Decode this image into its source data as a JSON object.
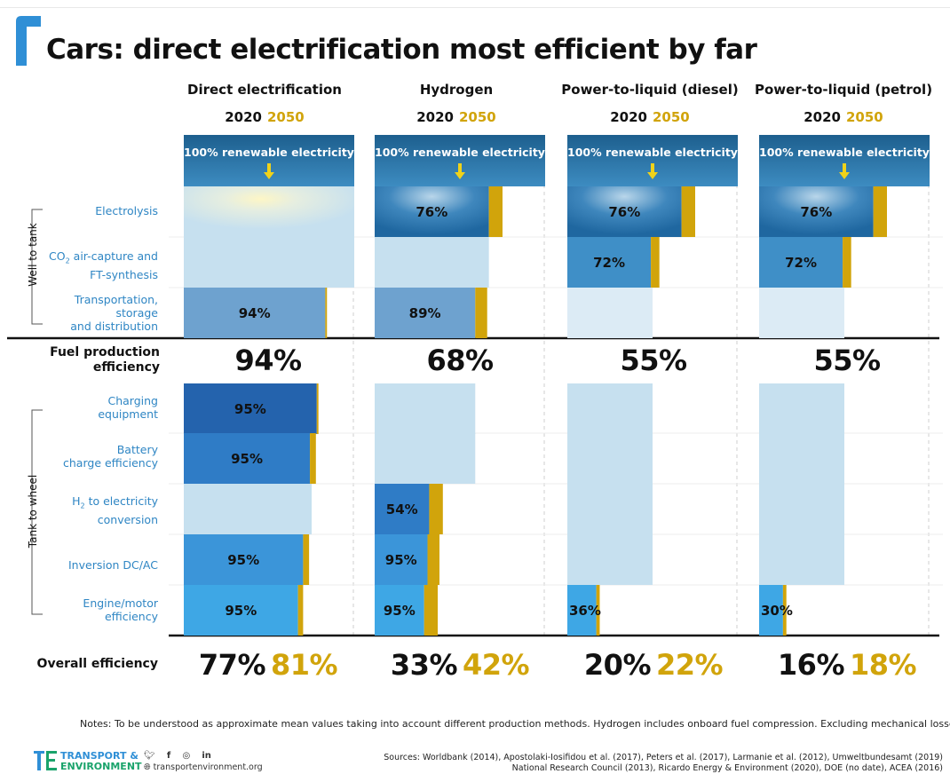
{
  "title": "Cars: direct electrification most efficient by far",
  "colors": {
    "accent_2050": "#d1a40b",
    "renewable_top": "#1d5f8e",
    "renewable_bottom": "#3d8cc1",
    "light_bar": "#c6e0ef",
    "arrow": "#f0d21a",
    "brand_blue": "#2f8fd6",
    "brand_green": "#1aa36b"
  },
  "columns": [
    {
      "title": "Direct electrification",
      "year_a": "2020",
      "year_b": "2050"
    },
    {
      "title": "Hydrogen",
      "year_a": "2020",
      "year_b": "2050"
    },
    {
      "title": "Power-to-liquid (diesel)",
      "year_a": "2020",
      "year_b": "2050"
    },
    {
      "title": "Power-to-liquid (petrol)",
      "year_a": "2020",
      "year_b": "2050"
    }
  ],
  "renewable_label": "100% renewable electricity",
  "row_labels": {
    "electrolysis": "Electrolysis",
    "co2_a": "CO",
    "co2_sub": "2",
    "co2_b": " air-capture and",
    "co2_c": "FT-synthesis",
    "transport_a": "Transportation,",
    "transport_b": "storage",
    "transport_c": "and distribution",
    "fuel_a": "Fuel production",
    "fuel_b": "efficiency",
    "charging_a": "Charging",
    "charging_b": "equipment",
    "battery_a": "Battery",
    "battery_b": "charge efficiency",
    "h2_a": "H",
    "h2_sub": "2",
    "h2_b": " to electricity",
    "h2_c": "conversion",
    "inversion": "Inversion DC/AC",
    "engine_a": "Engine/motor",
    "engine_b": "efficiency",
    "overall": "Overall efficiency",
    "well_to_tank": "Well to tank",
    "tank_to_wheel": "Tank to wheel"
  },
  "fuel_production": [
    "94%",
    "68%",
    "55%",
    "55%"
  ],
  "overall": [
    {
      "v2020": "77%",
      "v2050": "81%"
    },
    {
      "v2020": "33%",
      "v2050": "42%"
    },
    {
      "v2020": "20%",
      "v2050": "22%"
    },
    {
      "v2020": "16%",
      "v2050": "18%"
    }
  ],
  "chart_data": {
    "type": "bar",
    "title": "Cars: direct electrification most efficient by far",
    "categories": [
      "Direct electrification",
      "Hydrogen",
      "Power-to-liquid (diesel)",
      "Power-to-liquid (petrol)"
    ],
    "steps": [
      "Electrolysis",
      "CO2 air-capture and FT-synthesis",
      "Transportation, storage and distribution",
      "Charging equipment",
      "Battery charge efficiency",
      "H2 to electricity conversion",
      "Inversion DC/AC",
      "Engine/motor efficiency"
    ],
    "cells": [
      [
        {
          "step": 0,
          "label": "",
          "frac_2020": 1.0,
          "frac_2050": 1.0,
          "color": "#c6e0ef",
          "start": 1.0
        },
        {
          "step": 1,
          "label": "",
          "frac_2020": 1.0,
          "frac_2050": 1.0,
          "color": "#c6e0ef",
          "start": 1.0
        },
        {
          "step": 2,
          "label": "94%",
          "frac_2020": 0.83,
          "frac_2050": 0.84,
          "color": "#6ea2cf",
          "start": 1.0
        },
        {
          "step": 3,
          "label": "95%",
          "frac_2020": 0.78,
          "frac_2050": 0.79,
          "color": "#2463ad",
          "start": 0.84
        },
        {
          "step": 4,
          "label": "95%",
          "frac_2020": 0.74,
          "frac_2050": 0.775,
          "color": "#2f7cc6",
          "start": 0.79
        },
        {
          "step": 5,
          "label": "",
          "frac_2020": 0.75,
          "frac_2050": 0.75,
          "color": "#c6e0ef",
          "start": 0.75
        },
        {
          "step": 6,
          "label": "95%",
          "frac_2020": 0.7,
          "frac_2050": 0.735,
          "color": "#3b95d9",
          "start": 0.75
        },
        {
          "step": 7,
          "label": "95%",
          "frac_2020": 0.67,
          "frac_2050": 0.7,
          "color": "#3ea7e5",
          "start": 0.735
        }
      ],
      [
        {
          "step": 0,
          "label": "76%",
          "frac_2020": 0.67,
          "frac_2050": 0.75,
          "color": "renewable",
          "start": 1.0
        },
        {
          "step": 1,
          "label": "",
          "frac_2020": 0.67,
          "frac_2050": 0.67,
          "color": "#c6e0ef",
          "start": 0.67
        },
        {
          "step": 2,
          "label": "89%",
          "frac_2020": 0.59,
          "frac_2050": 0.66,
          "color": "#6ea2cf",
          "start": 0.67
        },
        {
          "step": 3,
          "label": "",
          "frac_2020": 0.59,
          "frac_2050": 0.59,
          "color": "#c6e0ef",
          "start": 0.59
        },
        {
          "step": 4,
          "label": "",
          "frac_2020": 0.59,
          "frac_2050": 0.59,
          "color": "#c6e0ef",
          "start": 0.59
        },
        {
          "step": 5,
          "label": "54%",
          "frac_2020": 0.32,
          "frac_2050": 0.4,
          "color": "#2f7cc6",
          "start": 0.59
        },
        {
          "step": 6,
          "label": "95%",
          "frac_2020": 0.31,
          "frac_2050": 0.38,
          "color": "#3b95d9",
          "start": 0.4
        },
        {
          "step": 7,
          "label": "95%",
          "frac_2020": 0.29,
          "frac_2050": 0.37,
          "color": "#3ea7e5",
          "start": 0.38
        }
      ],
      [
        {
          "step": 0,
          "label": "76%",
          "frac_2020": 0.67,
          "frac_2050": 0.75,
          "color": "renewable",
          "start": 1.0
        },
        {
          "step": 1,
          "label": "72%",
          "frac_2020": 0.49,
          "frac_2050": 0.54,
          "color": "#3f8fc7",
          "start": 0.75
        },
        {
          "step": 2,
          "label": "",
          "frac_2020": 0.5,
          "frac_2050": 0.5,
          "color": "#dcebf5",
          "start": 0.54
        },
        {
          "step": 3,
          "label": "",
          "frac_2020": 0.5,
          "frac_2050": 0.5,
          "color": "#c6e0ef",
          "start": 0.5
        },
        {
          "step": 4,
          "label": "",
          "frac_2020": 0.5,
          "frac_2050": 0.5,
          "color": "#c6e0ef",
          "start": 0.5
        },
        {
          "step": 5,
          "label": "",
          "frac_2020": 0.5,
          "frac_2050": 0.5,
          "color": "#c6e0ef",
          "start": 0.5
        },
        {
          "step": 6,
          "label": "",
          "frac_2020": 0.5,
          "frac_2050": 0.5,
          "color": "#c6e0ef",
          "start": 0.5
        },
        {
          "step": 7,
          "label": "36%",
          "frac_2020": 0.17,
          "frac_2050": 0.19,
          "color": "#3ea7e5",
          "start": 0.5
        }
      ],
      [
        {
          "step": 0,
          "label": "76%",
          "frac_2020": 0.67,
          "frac_2050": 0.75,
          "color": "renewable",
          "start": 1.0
        },
        {
          "step": 1,
          "label": "72%",
          "frac_2020": 0.49,
          "frac_2050": 0.54,
          "color": "#3f8fc7",
          "start": 0.75
        },
        {
          "step": 2,
          "label": "",
          "frac_2020": 0.5,
          "frac_2050": 0.5,
          "color": "#dcebf5",
          "start": 0.54
        },
        {
          "step": 3,
          "label": "",
          "frac_2020": 0.5,
          "frac_2050": 0.5,
          "color": "#c6e0ef",
          "start": 0.5
        },
        {
          "step": 4,
          "label": "",
          "frac_2020": 0.5,
          "frac_2050": 0.5,
          "color": "#c6e0ef",
          "start": 0.5
        },
        {
          "step": 5,
          "label": "",
          "frac_2020": 0.5,
          "frac_2050": 0.5,
          "color": "#c6e0ef",
          "start": 0.5
        },
        {
          "step": 6,
          "label": "",
          "frac_2020": 0.5,
          "frac_2050": 0.5,
          "color": "#c6e0ef",
          "start": 0.5
        },
        {
          "step": 7,
          "label": "30%",
          "frac_2020": 0.14,
          "frac_2050": 0.16,
          "color": "#3ea7e5",
          "start": 0.5
        }
      ]
    ],
    "fuel_production_efficiency": [
      94,
      68,
      55,
      55
    ],
    "overall_efficiency_2020": [
      77,
      33,
      20,
      16
    ],
    "overall_efficiency_2050": [
      81,
      42,
      22,
      18
    ]
  },
  "notes": "Notes: To be understood as approximate mean values taking into account different production methods. Hydrogen includes onboard fuel compression. Excluding mechanical losses",
  "sources_line1": "Sources: Worldbank (2014), Apostolaki-Iosifidou et al. (2017), Peters et al. (2017), Larmanie et al. (2012), Umweltbundesamt (2019)",
  "sources_line2": "National Research Council (2013), Ricardo Energy & Environment (2020), DOE (no date), ACEA (2016)",
  "logo_line1": "TRANSPORT &",
  "logo_line2": "ENVIRONMENT",
  "website": "transportenvironment.org",
  "social_icons": [
    "twitter-icon",
    "facebook-icon",
    "instagram-icon",
    "linkedin-icon"
  ]
}
